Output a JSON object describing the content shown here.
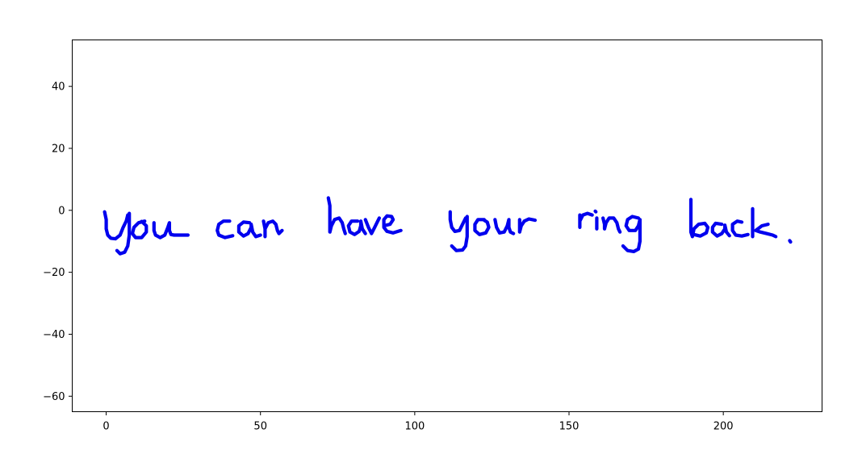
{
  "chart_data": {
    "type": "line",
    "title": "",
    "xlabel": "",
    "ylabel": "",
    "xlim": [
      -11,
      232
    ],
    "ylim": [
      -65,
      55
    ],
    "grid": false,
    "legend": "none",
    "stroke_color": "#0000ee",
    "x_ticks": [
      0,
      50,
      100,
      150,
      200
    ],
    "x_tick_labels": [
      "0",
      "50",
      "100",
      "150",
      "200"
    ],
    "y_ticks": [
      40,
      20,
      0,
      -20,
      -40,
      -60
    ],
    "y_tick_labels": [
      "40",
      "20",
      "0",
      "−20",
      "−40",
      "−60"
    ],
    "handwriting_text": "You can have your ring back.",
    "strokes": [
      [
        [
          -0.5,
          -0.5
        ],
        [
          0,
          -3
        ],
        [
          0,
          -6
        ],
        [
          0.5,
          -8
        ],
        [
          1.5,
          -9
        ],
        [
          3,
          -9.2
        ],
        [
          4.5,
          -8
        ],
        [
          5.5,
          -5.5
        ],
        [
          6.5,
          -3.5
        ],
        [
          7,
          -1.5
        ]
      ],
      [
        [
          7.5,
          -1
        ],
        [
          7.5,
          -4
        ],
        [
          7.5,
          -8
        ],
        [
          7,
          -11.5
        ],
        [
          6,
          -13.5
        ],
        [
          4.5,
          -14
        ],
        [
          3.5,
          -13
        ]
      ],
      [
        [
          12.5,
          -3.5
        ],
        [
          10.5,
          -4
        ],
        [
          9,
          -5.5
        ],
        [
          8.5,
          -7.5
        ],
        [
          9.5,
          -8.8
        ],
        [
          11.5,
          -8.8
        ],
        [
          13,
          -7
        ],
        [
          13,
          -5
        ],
        [
          11.5,
          -3.6
        ]
      ],
      [
        [
          15.5,
          -4
        ],
        [
          15.5,
          -6.5
        ],
        [
          16,
          -8
        ],
        [
          17.5,
          -8.8
        ],
        [
          19,
          -8
        ],
        [
          20,
          -5.5
        ],
        [
          20.5,
          -4
        ],
        [
          20.5,
          -6.5
        ],
        [
          21,
          -7.8
        ],
        [
          22,
          -8
        ],
        [
          23.5,
          -8
        ],
        [
          26.5,
          -8
        ]
      ],
      [
        [
          40,
          -3.5
        ],
        [
          38,
          -3.5
        ],
        [
          36.5,
          -4.5
        ],
        [
          36,
          -6.5
        ],
        [
          36.5,
          -8
        ],
        [
          38.5,
          -8.8
        ],
        [
          41,
          -8.2
        ]
      ],
      [
        [
          46.5,
          -4
        ],
        [
          44.5,
          -3.8
        ],
        [
          43,
          -5
        ],
        [
          43,
          -7
        ],
        [
          44.5,
          -8.3
        ],
        [
          46,
          -7.5
        ],
        [
          47,
          -5.5
        ],
        [
          47,
          -4.5
        ],
        [
          47.5,
          -7
        ],
        [
          48.5,
          -8.5
        ],
        [
          50,
          -8
        ]
      ],
      [
        [
          51,
          -3.5
        ],
        [
          51.5,
          -6
        ],
        [
          51.5,
          -8.5
        ],
        [
          51.5,
          -6
        ],
        [
          52.5,
          -4
        ],
        [
          54,
          -3.5
        ],
        [
          55,
          -4.5
        ],
        [
          55.5,
          -6.5
        ],
        [
          56,
          -7.5
        ],
        [
          57,
          -6.5
        ]
      ],
      [
        [
          72,
          4
        ],
        [
          72.5,
          1.5
        ],
        [
          72.5,
          -2
        ],
        [
          72.5,
          -5
        ],
        [
          72.5,
          -7
        ],
        [
          73,
          -5
        ],
        [
          74,
          -3
        ],
        [
          75.5,
          -2.5
        ],
        [
          76.5,
          -4
        ],
        [
          77,
          -6
        ],
        [
          77.5,
          -7.5
        ]
      ],
      [
        [
          81.5,
          -3.5
        ],
        [
          79.5,
          -3.5
        ],
        [
          78.5,
          -5
        ],
        [
          79,
          -7
        ],
        [
          80.5,
          -7.8
        ],
        [
          82,
          -6.8
        ],
        [
          82.5,
          -5
        ],
        [
          82.5,
          -3.5
        ],
        [
          83,
          -6
        ],
        [
          84,
          -7.5
        ]
      ],
      [
        [
          84,
          -3
        ],
        [
          85,
          -5.5
        ],
        [
          86,
          -7.5
        ],
        [
          87,
          -5.5
        ],
        [
          88,
          -3.5
        ],
        [
          88.5,
          -2.5
        ]
      ],
      [
        [
          90,
          -5
        ],
        [
          92,
          -4.5
        ],
        [
          93,
          -3
        ],
        [
          92.5,
          -2
        ],
        [
          91,
          -1.8
        ],
        [
          90,
          -3
        ],
        [
          90,
          -5.5
        ],
        [
          91,
          -6.8
        ],
        [
          93,
          -7.3
        ],
        [
          95.5,
          -6.5
        ]
      ],
      [
        [
          111.5,
          -0.5
        ],
        [
          111.5,
          -3
        ],
        [
          112,
          -5.5
        ],
        [
          113,
          -6.8
        ],
        [
          114.5,
          -6.5
        ],
        [
          115.5,
          -4.5
        ],
        [
          116.5,
          -2.5
        ]
      ],
      [
        [
          117,
          -2
        ],
        [
          117,
          -5
        ],
        [
          117,
          -8.5
        ],
        [
          116.5,
          -11.5
        ],
        [
          115.5,
          -12.8
        ],
        [
          113.5,
          -13
        ],
        [
          112,
          -11.5
        ]
      ],
      [
        [
          122.5,
          -3
        ],
        [
          120.5,
          -3
        ],
        [
          119.5,
          -4.5
        ],
        [
          119.5,
          -6.5
        ],
        [
          121,
          -7.8
        ],
        [
          123,
          -7.3
        ],
        [
          124,
          -5.5
        ],
        [
          123.5,
          -3.8
        ],
        [
          122.5,
          -3.2
        ]
      ],
      [
        [
          126,
          -3
        ],
        [
          126.5,
          -5.5
        ],
        [
          127.5,
          -7.3
        ],
        [
          129,
          -7
        ],
        [
          130,
          -5
        ],
        [
          130.5,
          -3
        ],
        [
          130.5,
          -5.5
        ],
        [
          131,
          -7
        ],
        [
          132,
          -7.5
        ]
      ],
      [
        [
          134,
          -3
        ],
        [
          134,
          -5
        ],
        [
          134,
          -7
        ],
        [
          134.5,
          -5
        ],
        [
          135.5,
          -3.5
        ],
        [
          137,
          -2.8
        ],
        [
          139,
          -3.2
        ]
      ],
      [
        [
          153.5,
          -1.5
        ],
        [
          153.5,
          -3.5
        ],
        [
          153.5,
          -5.5
        ],
        [
          153.5,
          -3.5
        ],
        [
          154.5,
          -1.5
        ],
        [
          156,
          -1
        ],
        [
          157.5,
          -1.5
        ]
      ],
      [
        [
          159,
          -2.5
        ],
        [
          159,
          -4.5
        ],
        [
          159,
          -6
        ]
      ],
      [
        [
          158.5,
          -0.3
        ],
        [
          158.7,
          -0.5
        ]
      ],
      [
        [
          161,
          -2.5
        ],
        [
          161.5,
          -4.5
        ],
        [
          161.5,
          -6
        ],
        [
          162,
          -4
        ],
        [
          163,
          -2.5
        ],
        [
          164.5,
          -2.5
        ],
        [
          165.5,
          -4
        ],
        [
          166,
          -6
        ],
        [
          166.5,
          -7
        ]
      ],
      [
        [
          172.5,
          -2.5
        ],
        [
          170.5,
          -2
        ],
        [
          169,
          -3
        ],
        [
          168.5,
          -5
        ],
        [
          169.5,
          -6.5
        ],
        [
          171.5,
          -6.5
        ],
        [
          172.5,
          -5
        ],
        [
          173,
          -3
        ],
        [
          173,
          -6
        ],
        [
          173,
          -10
        ],
        [
          172.5,
          -12.5
        ],
        [
          171,
          -13.3
        ],
        [
          169,
          -13
        ],
        [
          167.5,
          -11.5
        ]
      ],
      [
        [
          189.5,
          3.5
        ],
        [
          189.5,
          0
        ],
        [
          189.5,
          -3.5
        ],
        [
          189.5,
          -7
        ],
        [
          190,
          -8.5
        ],
        [
          190.5,
          -6
        ],
        [
          192,
          -4.5
        ],
        [
          194,
          -4.2
        ],
        [
          195,
          -5.5
        ],
        [
          194.5,
          -7.3
        ],
        [
          192.5,
          -8.3
        ],
        [
          190.5,
          -7.8
        ]
      ],
      [
        [
          199.5,
          -4.5
        ],
        [
          197.5,
          -4.2
        ],
        [
          196.5,
          -5.5
        ],
        [
          196.5,
          -7
        ],
        [
          198,
          -8.3
        ],
        [
          199.5,
          -7.5
        ],
        [
          200.5,
          -6
        ],
        [
          200.5,
          -4.8
        ],
        [
          201,
          -7
        ],
        [
          202,
          -8.2
        ]
      ],
      [
        [
          206,
          -3.8
        ],
        [
          204.5,
          -3.5
        ],
        [
          203,
          -4.5
        ],
        [
          203,
          -6.5
        ],
        [
          204,
          -8
        ],
        [
          206,
          -8.3
        ],
        [
          208,
          -7.8
        ]
      ],
      [
        [
          209.5,
          0.5
        ],
        [
          209.5,
          -2.5
        ],
        [
          209.5,
          -5
        ],
        [
          209.5,
          -7.5
        ],
        [
          209.5,
          -8.5
        ]
      ],
      [
        [
          214.5,
          -4.5
        ],
        [
          212.5,
          -5
        ],
        [
          210.5,
          -6.5
        ],
        [
          212,
          -7
        ],
        [
          214,
          -7.5
        ],
        [
          216,
          -8
        ],
        [
          217,
          -8.5
        ]
      ],
      [
        [
          221.5,
          -9.8
        ],
        [
          221.8,
          -10.2
        ]
      ]
    ]
  }
}
